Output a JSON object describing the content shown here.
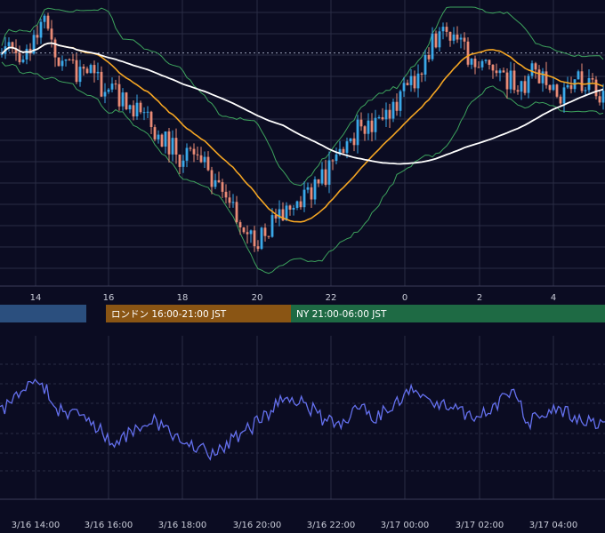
{
  "chart_data": [
    {
      "type": "candlestick",
      "x_axis_labels": [
        "14",
        "16",
        "18",
        "20",
        "22",
        "0",
        "2",
        "4"
      ],
      "x_axis_unit": "hour (JST)",
      "y_range_relative": [
        0,
        1
      ],
      "grid": true,
      "overlays": [
        {
          "kind": "bollinger_bands",
          "color": "#3da35d"
        },
        {
          "kind": "moving_average",
          "color": "#f5a623"
        },
        {
          "kind": "moving_average_long",
          "color": "#ffffff"
        }
      ],
      "dotted_reference_line_relative": 0.815,
      "close_relative": [
        0.86,
        0.83,
        0.87,
        0.93,
        0.82,
        0.76,
        0.78,
        0.72,
        0.68,
        0.65,
        0.62,
        0.54,
        0.5,
        0.44,
        0.47,
        0.36,
        0.28,
        0.22,
        0.14,
        0.18,
        0.24,
        0.3,
        0.32,
        0.38,
        0.44,
        0.52,
        0.58,
        0.55,
        0.63,
        0.7,
        0.78,
        0.88,
        0.92,
        0.85,
        0.78,
        0.8,
        0.74,
        0.7,
        0.76,
        0.72,
        0.68,
        0.74,
        0.7,
        0.66
      ],
      "colors": {
        "up": "#3aa8e8",
        "down": "#e98b76",
        "grid": "#2a2c44"
      }
    },
    {
      "type": "line",
      "name": "",
      "x_axis_labels": [
        "3/16 14:00",
        "3/16 16:00",
        "3/16 18:00",
        "3/16 20:00",
        "3/16 22:00",
        "3/17 00:00",
        "3/17 02:00",
        "3/17 04:00"
      ],
      "values_relative": [
        0.55,
        0.7,
        0.88,
        0.58,
        0.52,
        0.42,
        0.28,
        0.36,
        0.48,
        0.34,
        0.3,
        0.16,
        0.26,
        0.38,
        0.5,
        0.72,
        0.64,
        0.5,
        0.42,
        0.6,
        0.5,
        0.66,
        0.78,
        0.62,
        0.6,
        0.5,
        0.58,
        0.74,
        0.46,
        0.56,
        0.54,
        0.48,
        0.42
      ],
      "line_color": "#6470ee"
    }
  ],
  "sessions": [
    {
      "label": "",
      "color": "#2b4f7e"
    },
    {
      "label": "ロンドン 16:00-21:00 JST",
      "color": "#8a5514"
    },
    {
      "label": "NY 21:00-06:00 JST",
      "color": "#1e6a44"
    }
  ]
}
